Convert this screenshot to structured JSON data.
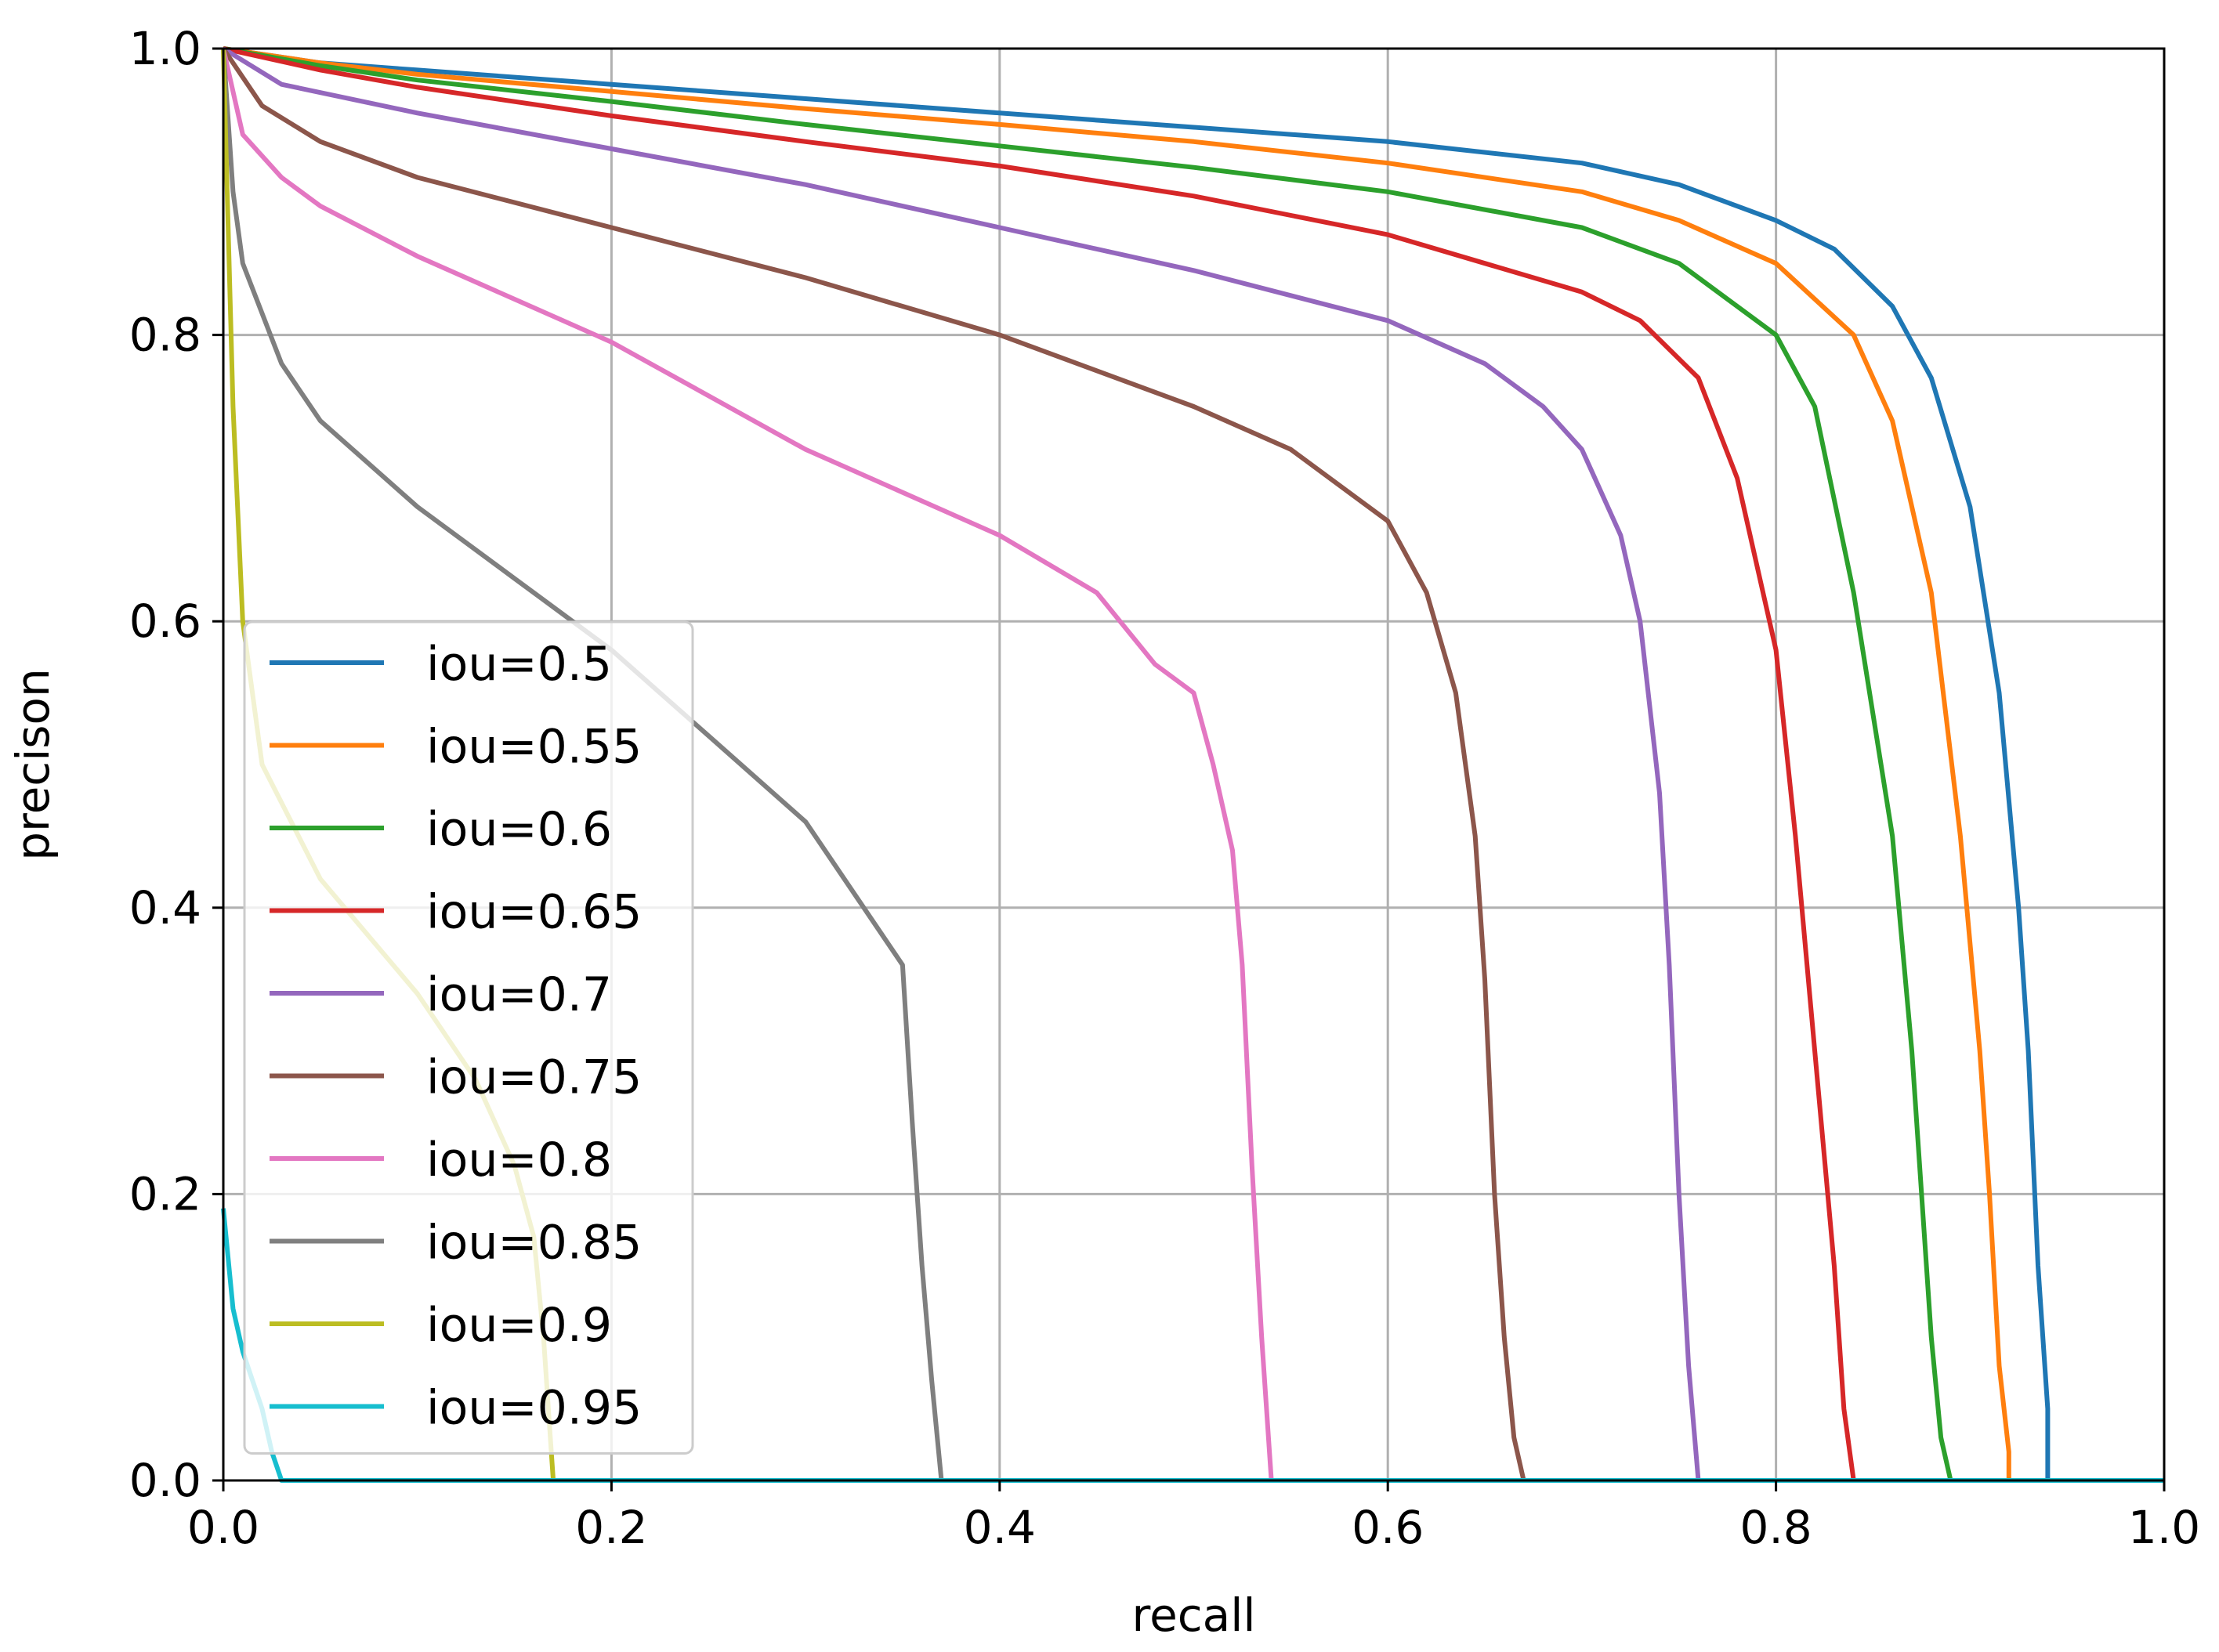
{
  "chart_data": {
    "type": "line",
    "title": "",
    "xlabel": "recall",
    "ylabel": "precison",
    "xlim": [
      0.0,
      1.0
    ],
    "ylim": [
      0.0,
      1.0
    ],
    "xticks": [
      "0.0",
      "0.2",
      "0.4",
      "0.6",
      "0.8",
      "1.0"
    ],
    "yticks": [
      "0.0",
      "0.2",
      "0.4",
      "0.6",
      "0.8",
      "1.0"
    ],
    "grid": true,
    "legend_position": "center-left",
    "series": [
      {
        "name": "iou=0.5",
        "color": "#1f77b4",
        "x": [
          0,
          0.05,
          0.1,
          0.2,
          0.3,
          0.4,
          0.5,
          0.6,
          0.7,
          0.75,
          0.8,
          0.83,
          0.86,
          0.88,
          0.9,
          0.915,
          0.925,
          0.93,
          0.935,
          0.94,
          0.94,
          1.0
        ],
        "y": [
          1.0,
          0.99,
          0.985,
          0.975,
          0.965,
          0.955,
          0.945,
          0.935,
          0.92,
          0.905,
          0.88,
          0.86,
          0.82,
          0.77,
          0.68,
          0.55,
          0.4,
          0.3,
          0.15,
          0.05,
          0.0,
          0.0
        ]
      },
      {
        "name": "iou=0.55",
        "color": "#ff7f0e",
        "x": [
          0,
          0.05,
          0.1,
          0.2,
          0.3,
          0.4,
          0.5,
          0.6,
          0.7,
          0.75,
          0.8,
          0.84,
          0.86,
          0.88,
          0.895,
          0.905,
          0.91,
          0.915,
          0.92,
          0.92,
          1.0
        ],
        "y": [
          1.0,
          0.99,
          0.982,
          0.97,
          0.958,
          0.947,
          0.935,
          0.92,
          0.9,
          0.88,
          0.85,
          0.8,
          0.74,
          0.62,
          0.45,
          0.3,
          0.2,
          0.08,
          0.02,
          0.0,
          0.0
        ]
      },
      {
        "name": "iou=0.6",
        "color": "#2ca02c",
        "x": [
          0,
          0.05,
          0.1,
          0.2,
          0.3,
          0.4,
          0.5,
          0.6,
          0.7,
          0.75,
          0.8,
          0.82,
          0.84,
          0.86,
          0.87,
          0.875,
          0.88,
          0.885,
          0.89,
          0.89,
          1.0
        ],
        "y": [
          1.0,
          0.988,
          0.978,
          0.963,
          0.947,
          0.932,
          0.917,
          0.9,
          0.875,
          0.85,
          0.8,
          0.75,
          0.62,
          0.45,
          0.3,
          0.2,
          0.1,
          0.03,
          0.0,
          0.0,
          0.0
        ]
      },
      {
        "name": "iou=0.65",
        "color": "#d62728",
        "x": [
          0,
          0.05,
          0.1,
          0.2,
          0.3,
          0.4,
          0.5,
          0.6,
          0.7,
          0.73,
          0.76,
          0.78,
          0.8,
          0.81,
          0.82,
          0.83,
          0.835,
          0.84,
          0.84,
          1.0
        ],
        "y": [
          1.0,
          0.985,
          0.973,
          0.953,
          0.935,
          0.918,
          0.897,
          0.87,
          0.83,
          0.81,
          0.77,
          0.7,
          0.58,
          0.45,
          0.3,
          0.15,
          0.05,
          0.0,
          0.0,
          0.0
        ]
      },
      {
        "name": "iou=0.7",
        "color": "#9467bd",
        "x": [
          0,
          0.03,
          0.1,
          0.2,
          0.3,
          0.4,
          0.5,
          0.6,
          0.65,
          0.68,
          0.7,
          0.72,
          0.73,
          0.74,
          0.745,
          0.75,
          0.755,
          0.76,
          0.76,
          1.0
        ],
        "y": [
          1.0,
          0.975,
          0.955,
          0.93,
          0.905,
          0.875,
          0.845,
          0.81,
          0.78,
          0.75,
          0.72,
          0.66,
          0.6,
          0.48,
          0.36,
          0.2,
          0.08,
          0.0,
          0.0,
          0.0
        ]
      },
      {
        "name": "iou=0.75",
        "color": "#8c564b",
        "x": [
          0,
          0.02,
          0.05,
          0.1,
          0.2,
          0.3,
          0.4,
          0.5,
          0.55,
          0.6,
          0.62,
          0.635,
          0.645,
          0.65,
          0.655,
          0.66,
          0.665,
          0.67,
          0.67,
          1.0
        ],
        "y": [
          1.0,
          0.96,
          0.935,
          0.91,
          0.875,
          0.84,
          0.8,
          0.75,
          0.72,
          0.67,
          0.62,
          0.55,
          0.45,
          0.35,
          0.2,
          0.1,
          0.03,
          0.0,
          0.0,
          0.0
        ]
      },
      {
        "name": "iou=0.8",
        "color": "#e377c2",
        "x": [
          0,
          0.01,
          0.03,
          0.05,
          0.1,
          0.2,
          0.3,
          0.4,
          0.45,
          0.48,
          0.5,
          0.51,
          0.52,
          0.525,
          0.53,
          0.535,
          0.54,
          0.54,
          1.0
        ],
        "y": [
          1.0,
          0.94,
          0.91,
          0.89,
          0.855,
          0.795,
          0.72,
          0.66,
          0.62,
          0.57,
          0.55,
          0.5,
          0.44,
          0.36,
          0.22,
          0.1,
          0.0,
          0.0,
          0.0
        ]
      },
      {
        "name": "iou=0.85",
        "color": "#7f7f7f",
        "x": [
          0,
          0.005,
          0.01,
          0.03,
          0.05,
          0.1,
          0.15,
          0.2,
          0.25,
          0.3,
          0.33,
          0.35,
          0.355,
          0.36,
          0.365,
          0.37,
          0.37,
          1.0
        ],
        "y": [
          1.0,
          0.9,
          0.85,
          0.78,
          0.74,
          0.68,
          0.63,
          0.58,
          0.52,
          0.46,
          0.4,
          0.36,
          0.25,
          0.15,
          0.07,
          0.0,
          0.0,
          0.0
        ]
      },
      {
        "name": "iou=0.9",
        "color": "#bcbd22",
        "x": [
          0,
          0.005,
          0.01,
          0.02,
          0.05,
          0.1,
          0.13,
          0.15,
          0.16,
          0.165,
          0.168,
          0.17,
          0.17,
          1.0
        ],
        "y": [
          1.0,
          0.75,
          0.6,
          0.5,
          0.42,
          0.34,
          0.28,
          0.22,
          0.17,
          0.1,
          0.04,
          0.0,
          0.0,
          0.0
        ]
      },
      {
        "name": "iou=0.95",
        "color": "#17becf",
        "x": [
          0,
          0.005,
          0.01,
          0.02,
          0.025,
          0.03,
          0.03,
          1.0
        ],
        "y": [
          0.19,
          0.12,
          0.09,
          0.05,
          0.02,
          0.0,
          0.0,
          0.0
        ]
      }
    ]
  }
}
